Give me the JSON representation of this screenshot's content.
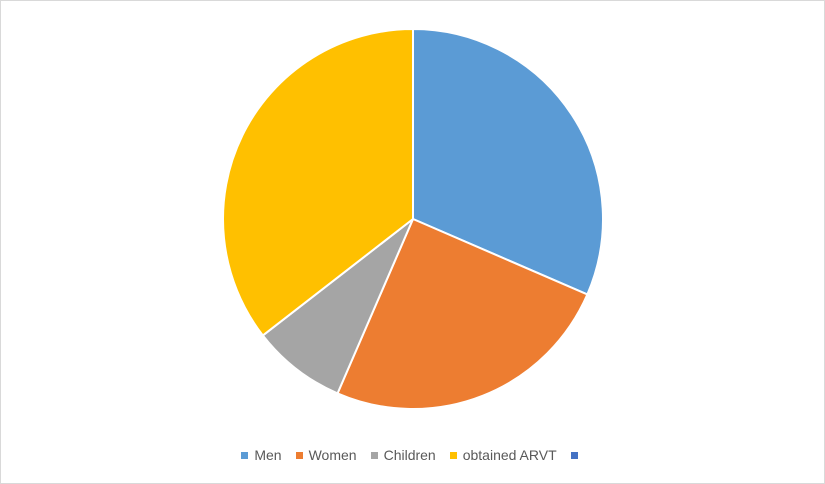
{
  "chart_data": {
    "type": "pie",
    "title": "",
    "start_angle": "12 o'clock, clockwise",
    "slices": [
      {
        "label": "Men",
        "value": 31.5,
        "color": "#5B9BD5"
      },
      {
        "label": "Women",
        "value": 25.0,
        "color": "#ED7D31"
      },
      {
        "label": "Children",
        "value": 8.0,
        "color": "#A5A5A5"
      },
      {
        "label": "obtained ARVT",
        "value": 35.5,
        "color": "#FFC000"
      }
    ],
    "legend": [
      {
        "label": "Men",
        "color": "#5B9BD5"
      },
      {
        "label": "Women",
        "color": "#ED7D31"
      },
      {
        "label": "Children",
        "color": "#A5A5A5"
      },
      {
        "label": "obtained ARVT",
        "color": "#FFC000"
      },
      {
        "label": "",
        "color": "#4472C4"
      }
    ],
    "legend_position": "bottom"
  }
}
